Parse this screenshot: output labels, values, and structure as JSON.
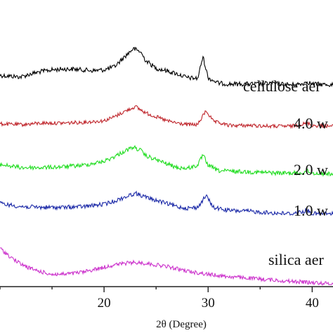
{
  "chart_data": {
    "type": "line",
    "title": "",
    "xlabel": "2θ (Degree)",
    "ylabel": "",
    "xlim": [
      10,
      42
    ],
    "x_ticks": [
      20,
      30,
      40
    ],
    "x_tick_labels": [
      "20",
      "30",
      "40"
    ],
    "grid": false,
    "legend": "none",
    "series": [
      {
        "name": "cellulose aer",
        "color": "#000000",
        "points": [
          [
            10,
            0.62
          ],
          [
            11,
            0.6
          ],
          [
            12,
            0.58
          ],
          [
            13,
            0.66
          ],
          [
            14,
            0.72
          ],
          [
            15,
            0.76
          ],
          [
            16,
            0.78
          ],
          [
            17,
            0.78
          ],
          [
            18,
            0.76
          ],
          [
            19,
            0.74
          ],
          [
            20,
            0.76
          ],
          [
            21,
            0.84
          ],
          [
            22,
            1.1
          ],
          [
            22.8,
            1.3
          ],
          [
            23.5,
            1.22
          ],
          [
            24,
            1.0
          ],
          [
            25,
            0.8
          ],
          [
            26,
            0.74
          ],
          [
            27,
            0.66
          ],
          [
            28,
            0.56
          ],
          [
            29,
            0.54
          ],
          [
            29.5,
            1.1
          ],
          [
            30,
            0.56
          ],
          [
            31,
            0.42
          ],
          [
            32,
            0.4
          ],
          [
            33,
            0.4
          ],
          [
            34,
            0.4
          ],
          [
            35,
            0.4
          ],
          [
            36,
            0.42
          ],
          [
            37,
            0.4
          ],
          [
            38,
            0.38
          ],
          [
            39,
            0.4
          ],
          [
            39.5,
            0.46
          ],
          [
            40,
            0.4
          ],
          [
            42,
            0.38
          ]
        ]
      },
      {
        "name": "4.0 w",
        "color": "#c0272d",
        "points": [
          [
            10,
            0.28
          ],
          [
            12,
            0.26
          ],
          [
            14,
            0.3
          ],
          [
            16,
            0.3
          ],
          [
            18,
            0.32
          ],
          [
            20,
            0.36
          ],
          [
            21,
            0.46
          ],
          [
            22,
            0.6
          ],
          [
            23,
            0.72
          ],
          [
            24,
            0.56
          ],
          [
            25,
            0.46
          ],
          [
            26,
            0.36
          ],
          [
            27,
            0.3
          ],
          [
            28,
            0.26
          ],
          [
            29,
            0.26
          ],
          [
            29.8,
            0.62
          ],
          [
            30.5,
            0.34
          ],
          [
            32,
            0.24
          ],
          [
            34,
            0.24
          ],
          [
            36,
            0.22
          ],
          [
            38,
            0.22
          ],
          [
            39.6,
            0.3
          ],
          [
            40,
            0.24
          ],
          [
            42,
            0.22
          ]
        ]
      },
      {
        "name": "2.0 w",
        "color": "#22dd22",
        "points": [
          [
            10,
            0.32
          ],
          [
            11,
            0.28
          ],
          [
            12,
            0.24
          ],
          [
            14,
            0.24
          ],
          [
            16,
            0.26
          ],
          [
            18,
            0.3
          ],
          [
            20,
            0.4
          ],
          [
            21,
            0.52
          ],
          [
            22,
            0.66
          ],
          [
            22.8,
            0.76
          ],
          [
            23.5,
            0.68
          ],
          [
            24,
            0.54
          ],
          [
            25,
            0.44
          ],
          [
            26,
            0.34
          ],
          [
            27,
            0.24
          ],
          [
            28,
            0.22
          ],
          [
            29,
            0.3
          ],
          [
            29.5,
            0.56
          ],
          [
            30,
            0.3
          ],
          [
            31,
            0.16
          ],
          [
            33,
            0.14
          ],
          [
            35,
            0.12
          ],
          [
            37,
            0.1
          ],
          [
            39,
            0.1
          ],
          [
            39.5,
            0.16
          ],
          [
            40,
            0.1
          ],
          [
            42,
            0.08
          ]
        ]
      },
      {
        "name": "1.0 w",
        "color": "#1c2aa8",
        "points": [
          [
            10,
            0.4
          ],
          [
            11,
            0.36
          ],
          [
            12,
            0.32
          ],
          [
            14,
            0.3
          ],
          [
            16,
            0.3
          ],
          [
            18,
            0.32
          ],
          [
            20,
            0.38
          ],
          [
            21,
            0.46
          ],
          [
            22,
            0.56
          ],
          [
            23,
            0.66
          ],
          [
            24,
            0.56
          ],
          [
            25,
            0.48
          ],
          [
            26,
            0.4
          ],
          [
            27,
            0.32
          ],
          [
            28,
            0.28
          ],
          [
            29,
            0.3
          ],
          [
            29.8,
            0.6
          ],
          [
            30.5,
            0.3
          ],
          [
            32,
            0.22
          ],
          [
            34,
            0.2
          ],
          [
            36,
            0.16
          ],
          [
            38,
            0.14
          ],
          [
            39.6,
            0.22
          ],
          [
            40,
            0.14
          ],
          [
            42,
            0.14
          ]
        ]
      },
      {
        "name": "silica aer",
        "color": "#cc33cc",
        "points": [
          [
            10,
            0.92
          ],
          [
            11,
            0.7
          ],
          [
            12,
            0.52
          ],
          [
            13,
            0.4
          ],
          [
            14,
            0.32
          ],
          [
            15,
            0.26
          ],
          [
            16,
            0.26
          ],
          [
            17,
            0.28
          ],
          [
            18,
            0.32
          ],
          [
            19,
            0.38
          ],
          [
            20,
            0.44
          ],
          [
            21,
            0.5
          ],
          [
            22,
            0.54
          ],
          [
            23,
            0.56
          ],
          [
            24,
            0.54
          ],
          [
            25,
            0.5
          ],
          [
            26,
            0.46
          ],
          [
            27,
            0.4
          ],
          [
            28,
            0.34
          ],
          [
            29,
            0.3
          ],
          [
            30,
            0.26
          ],
          [
            32,
            0.2
          ],
          [
            34,
            0.16
          ],
          [
            36,
            0.12
          ],
          [
            38,
            0.08
          ],
          [
            40,
            0.05
          ],
          [
            42,
            0.02
          ]
        ]
      }
    ]
  }
}
